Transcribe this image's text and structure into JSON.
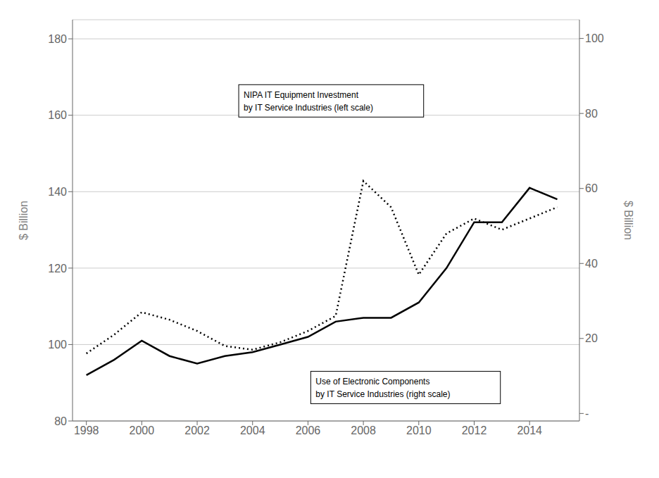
{
  "chart_data": {
    "type": "line",
    "x": [
      1998,
      1999,
      2000,
      2001,
      2002,
      2003,
      2004,
      2005,
      2006,
      2007,
      2008,
      2009,
      2010,
      2011,
      2012,
      2013,
      2014,
      2015
    ],
    "series": [
      {
        "color": "#000000",
        "line_style": "solid",
        "axis": "y",
        "values": [
          92,
          96,
          101,
          97,
          95,
          97,
          98,
          100,
          102,
          106,
          107,
          107,
          111,
          120,
          132,
          132,
          141,
          138
        ]
      },
      {
        "color": "#000000",
        "line_style": "dotted",
        "axis": "y2",
        "values": [
          16,
          21,
          27,
          25,
          22,
          18,
          17,
          19,
          22,
          26,
          62,
          55,
          37,
          48,
          52,
          49,
          52,
          55
        ]
      }
    ],
    "xlim": [
      1997.5,
      2015.8
    ],
    "xticks": [
      1998,
      2000,
      2002,
      2004,
      2006,
      2008,
      2010,
      2012,
      2014
    ],
    "ylim": [
      80,
      185
    ],
    "yticks": [
      80,
      100,
      120,
      140,
      160,
      180
    ],
    "y2lim": [
      -2,
      105
    ],
    "y2ticks": [
      {
        "value": 0,
        "label": "-"
      },
      20,
      40,
      60,
      80,
      100
    ],
    "ylabel": "$ Billion",
    "y2label": "$ Billion",
    "grid": true,
    "annotations": [
      {
        "text": "NIPA IT Equipment Investment\nby IT Service Industries (left scale)",
        "x": 2003.5,
        "y": 168
      },
      {
        "text": "Use of Electronic Components\nby IT Service Industries (right scale)",
        "x": 2006.1,
        "y": 93
      }
    ]
  }
}
